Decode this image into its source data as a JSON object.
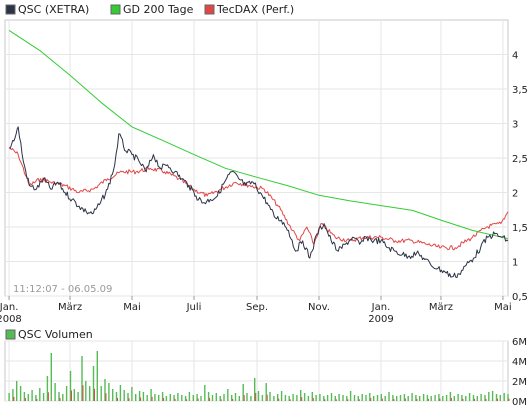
{
  "chart_data": [
    {
      "type": "line",
      "legend_placement": "top-left",
      "grid": true,
      "timestamp": "11:12:07 - 06.05.09",
      "x_start": "2008-01-01",
      "x_end": "2009-05-06",
      "xlim": [
        "2007-12-28",
        "2009-05-06"
      ],
      "ylim": [
        0.5,
        4.5
      ],
      "y_ticks": [
        {
          "v": 4,
          "label": "4"
        },
        {
          "v": 3.5,
          "label": "3,5"
        },
        {
          "v": 3,
          "label": "3"
        },
        {
          "v": 2.5,
          "label": "2,5"
        },
        {
          "v": 2,
          "label": "2"
        },
        {
          "v": 1.5,
          "label": "1,5"
        },
        {
          "v": 1,
          "label": "1"
        },
        {
          "v": 0.5,
          "label": "0,5"
        }
      ],
      "x_ticks": [
        {
          "date": "2008-01-01",
          "label": "Jan.",
          "year": "2008"
        },
        {
          "date": "2008-03-01",
          "label": "März",
          "year": ""
        },
        {
          "date": "2008-05-01",
          "label": "Mai",
          "year": ""
        },
        {
          "date": "2008-07-01",
          "label": "Juli",
          "year": ""
        },
        {
          "date": "2008-09-01",
          "label": "Sep.",
          "year": ""
        },
        {
          "date": "2008-11-01",
          "label": "Nov.",
          "year": ""
        },
        {
          "date": "2009-01-01",
          "label": "Jan.",
          "year": "2009"
        },
        {
          "date": "2009-03-01",
          "label": "März",
          "year": ""
        },
        {
          "date": "2009-05-01",
          "label": "Mai",
          "year": ""
        }
      ],
      "series": [
        {
          "name": "QSC (XETRA)",
          "color": "#2b3346",
          "style": "jagged",
          "points": [
            [
              "2008-01-01",
              2.65
            ],
            [
              "2008-01-07",
              2.8
            ],
            [
              "2008-01-10",
              2.95
            ],
            [
              "2008-01-15",
              2.45
            ],
            [
              "2008-01-21",
              2.1
            ],
            [
              "2008-01-28",
              2.05
            ],
            [
              "2008-02-04",
              2.2
            ],
            [
              "2008-02-11",
              2.05
            ],
            [
              "2008-02-18",
              2.15
            ],
            [
              "2008-02-25",
              2.0
            ],
            [
              "2008-03-03",
              1.9
            ],
            [
              "2008-03-10",
              1.8
            ],
            [
              "2008-03-17",
              1.72
            ],
            [
              "2008-03-24",
              1.7
            ],
            [
              "2008-03-31",
              1.85
            ],
            [
              "2008-04-07",
              2.05
            ],
            [
              "2008-04-14",
              2.4
            ],
            [
              "2008-04-18",
              2.85
            ],
            [
              "2008-04-25",
              2.6
            ],
            [
              "2008-05-01",
              2.55
            ],
            [
              "2008-05-08",
              2.45
            ],
            [
              "2008-05-15",
              2.3
            ],
            [
              "2008-05-22",
              2.55
            ],
            [
              "2008-05-29",
              2.35
            ],
            [
              "2008-06-05",
              2.4
            ],
            [
              "2008-06-12",
              2.3
            ],
            [
              "2008-06-19",
              2.2
            ],
            [
              "2008-06-26",
              2.1
            ],
            [
              "2008-07-03",
              1.95
            ],
            [
              "2008-07-10",
              1.85
            ],
            [
              "2008-07-17",
              1.9
            ],
            [
              "2008-07-24",
              1.95
            ],
            [
              "2008-07-31",
              2.15
            ],
            [
              "2008-08-07",
              2.3
            ],
            [
              "2008-08-14",
              2.2
            ],
            [
              "2008-08-21",
              2.1
            ],
            [
              "2008-08-28",
              2.15
            ],
            [
              "2008-09-04",
              2.0
            ],
            [
              "2008-09-11",
              1.85
            ],
            [
              "2008-09-18",
              1.65
            ],
            [
              "2008-09-25",
              1.6
            ],
            [
              "2008-10-02",
              1.45
            ],
            [
              "2008-10-09",
              1.15
            ],
            [
              "2008-10-16",
              1.3
            ],
            [
              "2008-10-23",
              1.05
            ],
            [
              "2008-10-30",
              1.4
            ],
            [
              "2008-11-06",
              1.55
            ],
            [
              "2008-11-13",
              1.3
            ],
            [
              "2008-11-20",
              1.15
            ],
            [
              "2008-11-27",
              1.25
            ],
            [
              "2008-12-04",
              1.35
            ],
            [
              "2008-12-11",
              1.25
            ],
            [
              "2008-12-18",
              1.35
            ],
            [
              "2008-12-25",
              1.3
            ],
            [
              "2009-01-01",
              1.3
            ],
            [
              "2009-01-08",
              1.2
            ],
            [
              "2009-01-15",
              1.15
            ],
            [
              "2009-01-22",
              1.1
            ],
            [
              "2009-01-29",
              1.08
            ],
            [
              "2009-02-05",
              1.12
            ],
            [
              "2009-02-12",
              1.05
            ],
            [
              "2009-02-19",
              0.95
            ],
            [
              "2009-02-26",
              0.9
            ],
            [
              "2009-03-05",
              0.85
            ],
            [
              "2009-03-12",
              0.78
            ],
            [
              "2009-03-19",
              0.82
            ],
            [
              "2009-03-26",
              0.95
            ],
            [
              "2009-04-02",
              1.05
            ],
            [
              "2009-04-09",
              1.2
            ],
            [
              "2009-04-16",
              1.35
            ],
            [
              "2009-04-23",
              1.4
            ],
            [
              "2009-04-30",
              1.35
            ],
            [
              "2009-05-06",
              1.3
            ]
          ]
        },
        {
          "name": "GD 200 Tage",
          "color": "#33cc33",
          "style": "smooth",
          "points": [
            [
              "2008-01-01",
              4.35
            ],
            [
              "2008-02-01",
              4.05
            ],
            [
              "2008-03-01",
              3.7
            ],
            [
              "2008-04-01",
              3.3
            ],
            [
              "2008-05-01",
              2.95
            ],
            [
              "2008-06-01",
              2.75
            ],
            [
              "2008-07-01",
              2.55
            ],
            [
              "2008-08-01",
              2.35
            ],
            [
              "2008-09-01",
              2.22
            ],
            [
              "2008-10-01",
              2.1
            ],
            [
              "2008-11-01",
              1.96
            ],
            [
              "2008-12-01",
              1.88
            ],
            [
              "2009-01-01",
              1.81
            ],
            [
              "2009-02-01",
              1.74
            ],
            [
              "2009-03-01",
              1.6
            ],
            [
              "2009-04-01",
              1.45
            ],
            [
              "2009-05-06",
              1.33
            ]
          ]
        },
        {
          "name": "TecDAX (Perf.)",
          "color": "#e04848",
          "style": "jagged",
          "points": [
            [
              "2008-01-01",
              2.65
            ],
            [
              "2008-01-10",
              2.55
            ],
            [
              "2008-01-21",
              2.1
            ],
            [
              "2008-02-01",
              2.2
            ],
            [
              "2008-02-11",
              2.15
            ],
            [
              "2008-02-25",
              2.1
            ],
            [
              "2008-03-10",
              2.0
            ],
            [
              "2008-03-24",
              2.05
            ],
            [
              "2008-04-07",
              2.2
            ],
            [
              "2008-04-21",
              2.3
            ],
            [
              "2008-05-05",
              2.3
            ],
            [
              "2008-05-19",
              2.35
            ],
            [
              "2008-06-02",
              2.3
            ],
            [
              "2008-06-16",
              2.2
            ],
            [
              "2008-06-30",
              2.05
            ],
            [
              "2008-07-14",
              1.95
            ],
            [
              "2008-07-28",
              2.05
            ],
            [
              "2008-08-11",
              2.15
            ],
            [
              "2008-08-25",
              2.1
            ],
            [
              "2008-09-08",
              2.05
            ],
            [
              "2008-09-22",
              1.8
            ],
            [
              "2008-10-06",
              1.45
            ],
            [
              "2008-10-13",
              1.3
            ],
            [
              "2008-10-20",
              1.5
            ],
            [
              "2008-10-27",
              1.25
            ],
            [
              "2008-11-03",
              1.55
            ],
            [
              "2008-11-17",
              1.35
            ],
            [
              "2008-12-01",
              1.3
            ],
            [
              "2008-12-15",
              1.35
            ],
            [
              "2009-01-01",
              1.35
            ],
            [
              "2009-01-15",
              1.3
            ],
            [
              "2009-02-01",
              1.3
            ],
            [
              "2009-02-15",
              1.25
            ],
            [
              "2009-03-01",
              1.2
            ],
            [
              "2009-03-15",
              1.2
            ],
            [
              "2009-04-01",
              1.35
            ],
            [
              "2009-04-15",
              1.5
            ],
            [
              "2009-04-29",
              1.55
            ],
            [
              "2009-05-06",
              1.72
            ]
          ]
        }
      ]
    },
    {
      "type": "bar",
      "legend_placement": "top-left",
      "grid": true,
      "ylim": [
        0,
        6000000
      ],
      "y_ticks": [
        {
          "v": 6000000,
          "label": "6M"
        },
        {
          "v": 4000000,
          "label": "4M"
        },
        {
          "v": 2000000,
          "label": "2M"
        },
        {
          "v": 0,
          "label": "0M"
        }
      ],
      "series": [
        {
          "name": "QSC Volumen",
          "color": "#55bb55",
          "values": [
            800000,
            1200000,
            2000000,
            1500000,
            900000,
            700000,
            1100000,
            600000,
            1300000,
            800000,
            2500000,
            4800000,
            1800000,
            900000,
            700000,
            1500000,
            3000000,
            1200000,
            900000,
            4500000,
            2000000,
            1500000,
            3500000,
            5000000,
            1500000,
            2200000,
            1800000,
            1200000,
            900000,
            1600000,
            1100000,
            800000,
            1400000,
            700000,
            1000000,
            900000,
            600000,
            1200000,
            700000,
            600000,
            900000,
            500000,
            700000,
            600000,
            800000,
            600000,
            500000,
            900000,
            600000,
            700000,
            500000,
            1600000,
            900000,
            600000,
            800000,
            500000,
            700000,
            1200000,
            600000,
            800000,
            500000,
            1700000,
            800000,
            500000,
            2300000,
            1000000,
            600000,
            1800000,
            900000,
            500000,
            700000,
            1000000,
            600000,
            500000,
            700000,
            600000,
            1100000,
            800000,
            500000,
            900000,
            600000,
            700000,
            500000,
            600000,
            800000,
            500000,
            700000,
            600000,
            500000,
            1000000,
            600000,
            500000,
            700000,
            600000,
            800000,
            500000,
            600000,
            700000,
            500000,
            900000,
            600000,
            500000,
            600000,
            700000,
            500000,
            800000,
            600000,
            500000,
            700000,
            600000,
            500000,
            600000,
            700000,
            500000,
            600000,
            900000,
            500000,
            700000,
            600000,
            500000,
            800000,
            600000,
            500000,
            700000,
            600000,
            900000,
            1000000,
            700000,
            600000,
            800000,
            700000
          ]
        }
      ]
    }
  ]
}
